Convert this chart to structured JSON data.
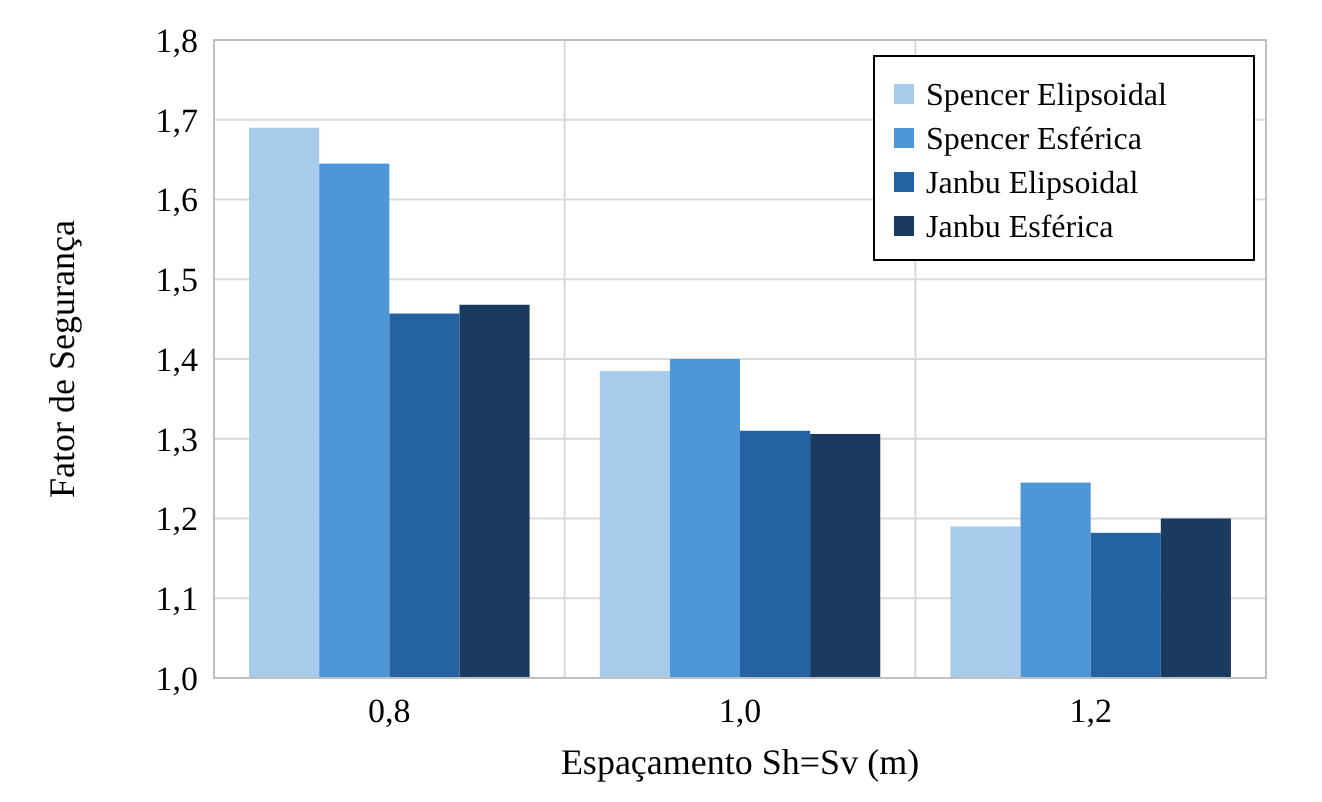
{
  "chart_data": {
    "type": "bar",
    "xlabel": "Espaçamento Sh=Sv (m)",
    "ylabel": "Fator de Segurança",
    "categories": [
      "0,8",
      "1,0",
      "1,2"
    ],
    "series": [
      {
        "name": "Spencer Elipsoidal",
        "color": "#a9cbeb",
        "values": [
          1.69,
          1.385,
          1.19
        ]
      },
      {
        "name": "Spencer Esférica",
        "color": "#4f96d9",
        "values": [
          1.645,
          1.4,
          1.245
        ]
      },
      {
        "name": "Janbu Elipsoidal",
        "color": "#2462a3",
        "values": [
          1.457,
          1.31,
          1.182
        ]
      },
      {
        "name": "Janbu Esférica",
        "color": "#1a3a60",
        "values": [
          1.468,
          1.306,
          1.2
        ]
      }
    ],
    "ylim": [
      1.0,
      1.8
    ],
    "yticks": [
      {
        "value": 1.0,
        "label": "1,0"
      },
      {
        "value": 1.1,
        "label": "1,1"
      },
      {
        "value": 1.2,
        "label": "1,2"
      },
      {
        "value": 1.3,
        "label": "1,3"
      },
      {
        "value": 1.4,
        "label": "1,4"
      },
      {
        "value": 1.5,
        "label": "1,5"
      },
      {
        "value": 1.6,
        "label": "1,6"
      },
      {
        "value": 1.7,
        "label": "1,7"
      },
      {
        "value": 1.8,
        "label": "1,8"
      }
    ],
    "grid": true,
    "legend": "top right"
  }
}
